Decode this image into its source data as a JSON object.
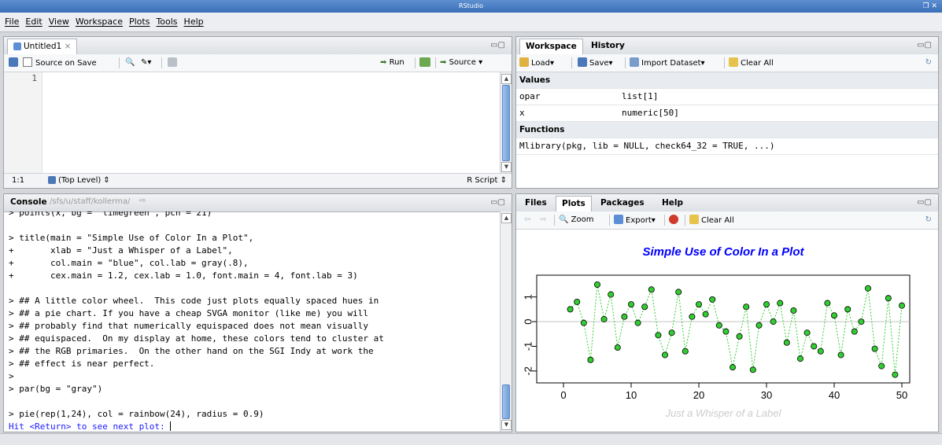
{
  "window": {
    "title": "RStudio",
    "controls": "❐ ✕"
  },
  "menu": [
    "File",
    "Edit",
    "View",
    "Workspace",
    "Plots",
    "Tools",
    "Help"
  ],
  "source_pane": {
    "tab_label": "Untitled1",
    "source_on_save": "Source on Save",
    "run": "Run",
    "source": "Source",
    "line_number": "1",
    "cursor_pos": "1:1",
    "scope": "(Top Level) ⇕",
    "file_type": "R Script ⇕"
  },
  "workspace_pane": {
    "tabs": [
      "Workspace",
      "History"
    ],
    "toolbar": {
      "load": "Load▾",
      "save": "Save▾",
      "import": "Import Dataset▾",
      "clear": "Clear All"
    },
    "values_header": "Values",
    "values": [
      {
        "name": "opar",
        "value": "list[1]"
      },
      {
        "name": "x",
        "value": "numeric[50]"
      }
    ],
    "functions_header": "Functions",
    "functions": [
      "Mlibrary(pkg, lib = NULL, check64_32 = TRUE, ...)"
    ]
  },
  "console_pane": {
    "title": "Console",
    "path": "/sfs/u/staff/kollerma/",
    "lines": [
      {
        "text": "> points(x, bg = \"limegreen\", pch = 21)",
        "color": "#000000"
      },
      {
        "text": "",
        "color": "#000000"
      },
      {
        "text": "> title(main = \"Simple Use of Color In a Plot\",",
        "color": "#000000"
      },
      {
        "text": "+       xlab = \"Just a Whisper of a Label\",",
        "color": "#000000"
      },
      {
        "text": "+       col.main = \"blue\", col.lab = gray(.8),",
        "color": "#000000"
      },
      {
        "text": "+       cex.main = 1.2, cex.lab = 1.0, font.main = 4, font.lab = 3)",
        "color": "#000000"
      },
      {
        "text": "",
        "color": "#000000"
      },
      {
        "text": "> ## A little color wheel.  This code just plots equally spaced hues in",
        "color": "#000000"
      },
      {
        "text": "> ## a pie chart. If you have a cheap SVGA monitor (like me) you will",
        "color": "#000000"
      },
      {
        "text": "> ## probably find that numerically equispaced does not mean visually",
        "color": "#000000"
      },
      {
        "text": "> ## equispaced.  On my display at home, these colors tend to cluster at",
        "color": "#000000"
      },
      {
        "text": "> ## the RGB primaries.  On the other hand on the SGI Indy at work the",
        "color": "#000000"
      },
      {
        "text": "> ## effect is near perfect.",
        "color": "#000000"
      },
      {
        "text": ">",
        "color": "#000000"
      },
      {
        "text": "> par(bg = \"gray\")",
        "color": "#000000"
      },
      {
        "text": "",
        "color": "#000000"
      },
      {
        "text": "> pie(rep(1,24), col = rainbow(24), radius = 0.9)",
        "color": "#000000"
      },
      {
        "text": "Hit <Return> to see next plot: ",
        "color": "#1a1aff"
      }
    ]
  },
  "plots_pane": {
    "tabs": [
      "Files",
      "Plots",
      "Packages",
      "Help"
    ],
    "toolbar": {
      "zoom": "Zoom",
      "export": "Export▾",
      "clear": "Clear All"
    }
  },
  "chart_data": {
    "type": "scatter",
    "title": "Simple Use of Color In a Plot",
    "xlabel": "Just a Whisper of a Label",
    "ylabel": "",
    "title_color": "#0000ff",
    "xlabel_color": "#cccccc",
    "point_color": "#32cd32",
    "line_color": "#32cd32",
    "xlim": [
      0,
      50
    ],
    "ylim": [
      -2.1,
      1.5
    ],
    "xticks": [
      "0",
      "10",
      "20",
      "30",
      "40",
      "50"
    ],
    "yticks": [
      "-2",
      "-1",
      "0",
      "1"
    ],
    "x": [
      1,
      2,
      3,
      4,
      5,
      6,
      7,
      8,
      9,
      10,
      11,
      12,
      13,
      14,
      15,
      16,
      17,
      18,
      19,
      20,
      21,
      22,
      23,
      24,
      25,
      26,
      27,
      28,
      28.9,
      30,
      31,
      32,
      33,
      34,
      35,
      36,
      37,
      38,
      39,
      40,
      41,
      42,
      43,
      44,
      45,
      46,
      47,
      48,
      49,
      50
    ],
    "y": [
      0.5,
      0.8,
      -0.05,
      -1.55,
      1.5,
      0.1,
      1.1,
      -1.05,
      0.2,
      0.7,
      -0.05,
      0.6,
      1.3,
      -0.55,
      -1.35,
      -0.45,
      1.2,
      -1.2,
      0.2,
      0.7,
      0.3,
      0.9,
      -0.15,
      -0.4,
      -1.85,
      -0.6,
      0.6,
      -1.95,
      -0.15,
      0.7,
      0.0,
      0.75,
      -0.85,
      0.45,
      -1.5,
      -0.45,
      -1.0,
      -1.2,
      0.75,
      0.25,
      -1.35,
      0.5,
      -0.4,
      0.0,
      1.35,
      -1.1,
      -1.8,
      0.95,
      -2.15,
      0.65
    ]
  }
}
